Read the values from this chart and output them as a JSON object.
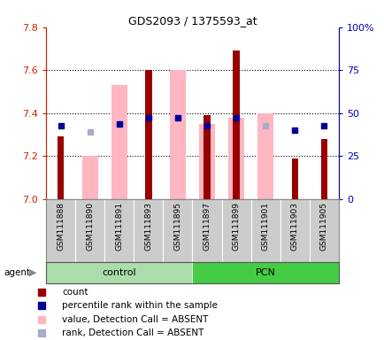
{
  "title": "GDS2093 / 1375593_at",
  "samples": [
    "GSM111888",
    "GSM111890",
    "GSM111891",
    "GSM111893",
    "GSM111895",
    "GSM111897",
    "GSM111899",
    "GSM111901",
    "GSM111903",
    "GSM111905"
  ],
  "groups": [
    {
      "label": "control",
      "indices": [
        0,
        1,
        2,
        3,
        4
      ],
      "color": "#aaddaa"
    },
    {
      "label": "PCN",
      "indices": [
        5,
        6,
        7,
        8,
        9
      ],
      "color": "#44cc44"
    }
  ],
  "ylim_left": [
    7.0,
    7.8
  ],
  "ylim_right": [
    0,
    100
  ],
  "yticks_left": [
    7.0,
    7.2,
    7.4,
    7.6,
    7.8
  ],
  "yticks_right": [
    0,
    25,
    50,
    75,
    100
  ],
  "yticklabels_right": [
    "0",
    "25",
    "50",
    "75",
    "100%"
  ],
  "red_bar_tops": [
    7.29,
    7.0,
    7.0,
    7.6,
    7.0,
    7.39,
    7.69,
    7.0,
    7.19,
    7.28
  ],
  "pink_bar_tops": [
    7.0,
    7.2,
    7.53,
    7.0,
    7.6,
    7.35,
    7.38,
    7.4,
    7.0,
    7.0
  ],
  "blue_sq_vals": [
    7.34,
    7.0,
    7.35,
    7.38,
    7.38,
    7.34,
    7.38,
    7.0,
    7.32,
    7.34
  ],
  "lblue_sq_vals": [
    7.0,
    7.31,
    7.35,
    7.0,
    7.38,
    7.0,
    7.0,
    7.34,
    7.0,
    7.0
  ],
  "has_red": [
    true,
    false,
    false,
    true,
    false,
    true,
    true,
    false,
    true,
    true
  ],
  "has_pink": [
    false,
    true,
    true,
    false,
    true,
    true,
    true,
    true,
    false,
    false
  ],
  "has_blue": [
    true,
    false,
    true,
    true,
    true,
    true,
    true,
    false,
    true,
    true
  ],
  "has_lblue": [
    false,
    true,
    true,
    false,
    true,
    false,
    false,
    true,
    false,
    false
  ],
  "baseline": 7.0,
  "colors": {
    "red_bar": "#990000",
    "pink_bar": "#FFB6C1",
    "blue_sq": "#000099",
    "lblue_sq": "#aaaacc",
    "ax_left": "#cc2200",
    "ax_right": "#0000bb",
    "bg_plot": "#ffffff",
    "bg_xlabels": "#cccccc",
    "ctrl_grp": "#bbeeaa",
    "pcn_grp": "#44dd44"
  },
  "legend_items": [
    {
      "color": "#990000",
      "label": "count"
    },
    {
      "color": "#000099",
      "label": "percentile rank within the sample"
    },
    {
      "color": "#FFB6C1",
      "label": "value, Detection Call = ABSENT"
    },
    {
      "color": "#aaaacc",
      "label": "rank, Detection Call = ABSENT"
    }
  ],
  "grid_lines": [
    7.2,
    7.4,
    7.6
  ]
}
